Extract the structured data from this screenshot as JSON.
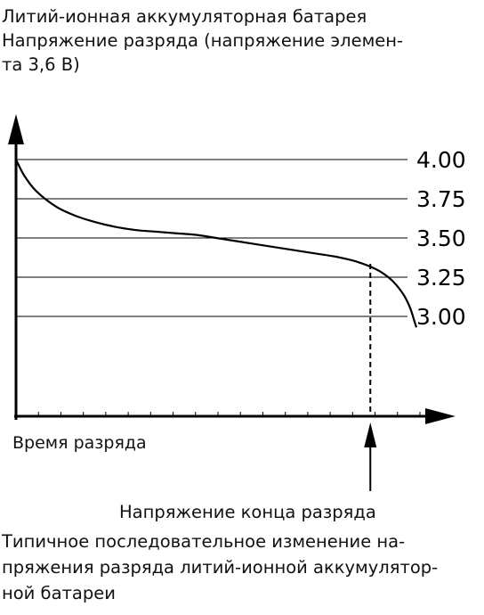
{
  "title_lines": [
    "Литий-ионная аккумуляторная батарея",
    "Напряжение разряда (напряжение элемен-",
    "та 3,6 В)"
  ],
  "annotation": "Напряжение конца разряда",
  "caption_lines": [
    "Типичное последовательное изменение на-",
    "пряжения разряда литий-ионной аккумулятор-",
    "ной батареи"
  ],
  "chart_data": {
    "type": "line",
    "xlabel": "Время разряда",
    "ylabel": "",
    "y_ticks": [
      4.0,
      3.75,
      3.5,
      3.25,
      3.0
    ],
    "y_tick_labels": [
      "4.00",
      "3.75",
      "3.50",
      "3.25",
      "3.00"
    ],
    "ylim": [
      2.5,
      4.0
    ],
    "xlim": [
      0,
      1
    ],
    "grid": true,
    "series": [
      {
        "x": [
          0,
          0.02,
          0.05,
          0.1,
          0.15,
          0.2,
          0.25,
          0.3,
          0.35,
          0.4,
          0.45,
          0.5,
          0.55,
          0.6,
          0.65,
          0.7,
          0.75,
          0.8,
          0.85,
          0.9,
          0.93,
          0.95,
          0.97,
          0.985,
          0.995,
          1.0
        ],
        "values": [
          4.0,
          3.9,
          3.8,
          3.7,
          3.64,
          3.6,
          3.57,
          3.55,
          3.54,
          3.53,
          3.52,
          3.5,
          3.48,
          3.46,
          3.44,
          3.42,
          3.4,
          3.38,
          3.35,
          3.3,
          3.25,
          3.2,
          3.13,
          3.05,
          2.97,
          2.93
        ]
      }
    ],
    "end_of_discharge_x": 0.885,
    "x_minor_ticks": 18
  }
}
